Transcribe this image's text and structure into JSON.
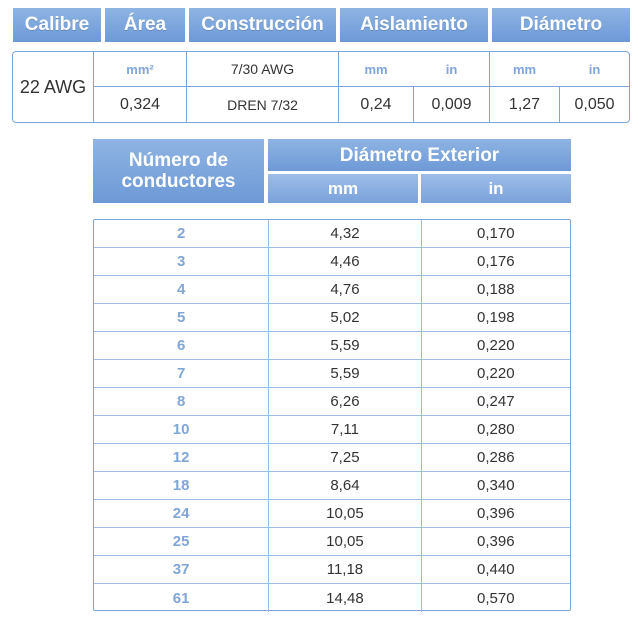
{
  "top_table": {
    "headers": [
      "Calibre",
      "Área",
      "Construcción",
      "Aislamiento",
      "Diámetro"
    ],
    "calibre": "22 AWG",
    "area_unit": "mm²",
    "area_value": "0,324",
    "construccion_1": "7/30 AWG",
    "construccion_2": "DREN 7/32",
    "aislamiento_units": [
      "mm",
      "in"
    ],
    "aislamiento_values": [
      "0,24",
      "0,009"
    ],
    "diametro_units": [
      "mm",
      "in"
    ],
    "diametro_values": [
      "1,27",
      "0,050"
    ]
  },
  "bottom_table": {
    "col1_header": "Número de conductores",
    "col2_header": "Diámetro Exterior",
    "sub_units": [
      "mm",
      "in"
    ],
    "rows": [
      {
        "n": "2",
        "mm": "4,32",
        "in": "0,170"
      },
      {
        "n": "3",
        "mm": "4,46",
        "in": "0,176"
      },
      {
        "n": "4",
        "mm": "4,76",
        "in": "0,188"
      },
      {
        "n": "5",
        "mm": "5,02",
        "in": "0,198"
      },
      {
        "n": "6",
        "mm": "5,59",
        "in": "0,220"
      },
      {
        "n": "7",
        "mm": "5,59",
        "in": "0,220"
      },
      {
        "n": "8",
        "mm": "6,26",
        "in": "0,247"
      },
      {
        "n": "10",
        "mm": "7,11",
        "in": "0,280"
      },
      {
        "n": "12",
        "mm": "7,25",
        "in": "0,286"
      },
      {
        "n": "18",
        "mm": "8,64",
        "in": "0,340"
      },
      {
        "n": "24",
        "mm": "10,05",
        "in": "0,396"
      },
      {
        "n": "25",
        "mm": "10,05",
        "in": "0,396"
      },
      {
        "n": "37",
        "mm": "11,18",
        "in": "0,440"
      },
      {
        "n": "61",
        "mm": "14,48",
        "in": "0,570"
      }
    ]
  }
}
